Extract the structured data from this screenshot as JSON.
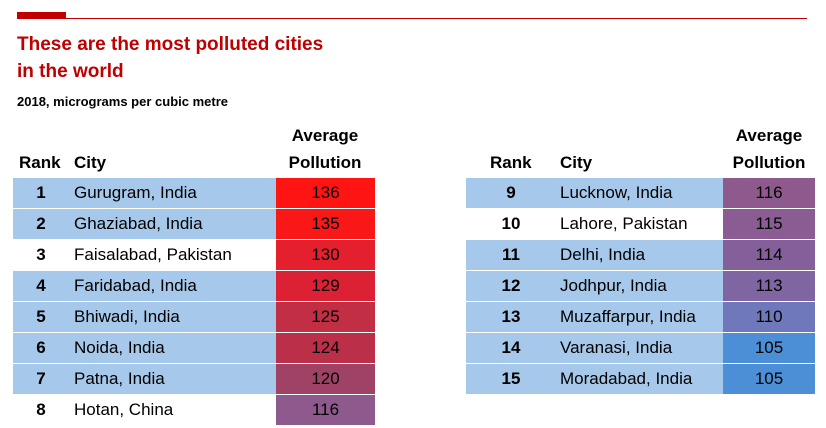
{
  "title": "These are the most polluted cities in the world",
  "subtitle": "2018, micrograms per cubic metre",
  "headers": {
    "rank": "Rank",
    "city": "City",
    "pollution_line1": "Average",
    "pollution_line2": "Pollution"
  },
  "colors": {
    "accent": "#c00000",
    "row_band": "#a6c8ea"
  },
  "chart_data": {
    "type": "table",
    "columns": [
      "Rank",
      "City",
      "Average Pollution"
    ],
    "rows": [
      {
        "rank": "1",
        "city": "Gurugram, India",
        "value": "136",
        "color": "#ff1414"
      },
      {
        "rank": "2",
        "city": "Ghaziabad, India",
        "value": "135",
        "color": "#fa1717"
      },
      {
        "rank": "3",
        "city": "Faisalabad, Pakistan",
        "value": "130",
        "color": "#e41f2e"
      },
      {
        "rank": "4",
        "city": "Faridabad, India",
        "value": "129",
        "color": "#dd2134"
      },
      {
        "rank": "5",
        "city": "Bhiwadi, India",
        "value": "125",
        "color": "#c22e44"
      },
      {
        "rank": "6",
        "city": "Noida, India",
        "value": "124",
        "color": "#bb3048"
      },
      {
        "rank": "7",
        "city": "Patna, India",
        "value": "120",
        "color": "#9f4266"
      },
      {
        "rank": "8",
        "city": "Hotan, China",
        "value": "116",
        "color": "#8e5a8e"
      },
      {
        "rank": "9",
        "city": "Lucknow, India",
        "value": "116",
        "color": "#8e5a8e"
      },
      {
        "rank": "10",
        "city": "Lahore, Pakistan",
        "value": "115",
        "color": "#8a5c93"
      },
      {
        "rank": "11",
        "city": "Delhi, India",
        "value": "114",
        "color": "#84609a"
      },
      {
        "rank": "12",
        "city": "Jodhpur, India",
        "value": "113",
        "color": "#7f66a2"
      },
      {
        "rank": "13",
        "city": "Muzaffarpur, India",
        "value": "110",
        "color": "#6f78ba"
      },
      {
        "rank": "14",
        "city": "Varanasi, India",
        "value": "105",
        "color": "#4d8fd6"
      },
      {
        "rank": "15",
        "city": "Moradabad, India",
        "value": "105",
        "color": "#4d8fd6"
      }
    ]
  }
}
